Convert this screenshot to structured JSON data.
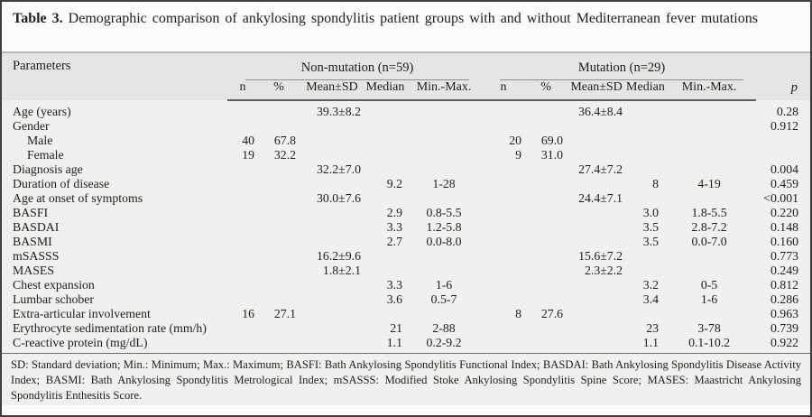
{
  "title": {
    "label": "Table 3.",
    "text": "Demographic comparison of ankylosing spondylitis patient groups with and without Mediterranean fever mutations"
  },
  "table": {
    "param_header": "Parameters",
    "groups": [
      {
        "label": "Non-mutation (n=59)"
      },
      {
        "label": "Mutation (n=29)"
      }
    ],
    "subheaders": [
      "n",
      "%",
      "Mean±SD",
      "Median",
      "Min.-Max."
    ],
    "p_header": "p",
    "rows": [
      {
        "param": "Age (years)",
        "indent": false,
        "nm": {
          "n": "",
          "pct": "",
          "mean": "39.3±8.2",
          "median": "",
          "minmax": ""
        },
        "m": {
          "n": "",
          "pct": "",
          "mean": "36.4±8.4",
          "median": "",
          "minmax": ""
        },
        "p": "0.28"
      },
      {
        "param": "Gender",
        "indent": false,
        "nm": {
          "n": "",
          "pct": "",
          "mean": "",
          "median": "",
          "minmax": ""
        },
        "m": {
          "n": "",
          "pct": "",
          "mean": "",
          "median": "",
          "minmax": ""
        },
        "p": "0.912"
      },
      {
        "param": "Male",
        "indent": true,
        "nm": {
          "n": "40",
          "pct": "67.8",
          "mean": "",
          "median": "",
          "minmax": ""
        },
        "m": {
          "n": "20",
          "pct": "69.0",
          "mean": "",
          "median": "",
          "minmax": ""
        },
        "p": ""
      },
      {
        "param": "Female",
        "indent": true,
        "nm": {
          "n": "19",
          "pct": "32.2",
          "mean": "",
          "median": "",
          "minmax": ""
        },
        "m": {
          "n": "9",
          "pct": "31.0",
          "mean": "",
          "median": "",
          "minmax": ""
        },
        "p": ""
      },
      {
        "param": "Diagnosis age",
        "indent": false,
        "nm": {
          "n": "",
          "pct": "",
          "mean": "32.2±7.0",
          "median": "",
          "minmax": ""
        },
        "m": {
          "n": "",
          "pct": "",
          "mean": "27.4±7.2",
          "median": "",
          "minmax": ""
        },
        "p": "0.004"
      },
      {
        "param": "Duration of disease",
        "indent": false,
        "nm": {
          "n": "",
          "pct": "",
          "mean": "",
          "median": "9.2",
          "minmax": "1-28"
        },
        "m": {
          "n": "",
          "pct": "",
          "mean": "",
          "median": "8",
          "minmax": "4-19"
        },
        "p": "0.459"
      },
      {
        "param": "Age at onset of symptoms",
        "indent": false,
        "nm": {
          "n": "",
          "pct": "",
          "mean": "30.0±7.6",
          "median": "",
          "minmax": ""
        },
        "m": {
          "n": "",
          "pct": "",
          "mean": "24.4±7.1",
          "median": "",
          "minmax": ""
        },
        "p": "<0.001"
      },
      {
        "param": "BASFI",
        "indent": false,
        "nm": {
          "n": "",
          "pct": "",
          "mean": "",
          "median": "2.9",
          "minmax": "0.8-5.5"
        },
        "m": {
          "n": "",
          "pct": "",
          "mean": "",
          "median": "3.0",
          "minmax": "1.8-5.5"
        },
        "p": "0.220"
      },
      {
        "param": "BASDAI",
        "indent": false,
        "nm": {
          "n": "",
          "pct": "",
          "mean": "",
          "median": "3.3",
          "minmax": "1.2-5.8"
        },
        "m": {
          "n": "",
          "pct": "",
          "mean": "",
          "median": "3.5",
          "minmax": "2.8-7.2"
        },
        "p": "0.148"
      },
      {
        "param": "BASMI",
        "indent": false,
        "nm": {
          "n": "",
          "pct": "",
          "mean": "",
          "median": "2.7",
          "minmax": "0.0-8.0"
        },
        "m": {
          "n": "",
          "pct": "",
          "mean": "",
          "median": "3.5",
          "minmax": "0.0-7.0"
        },
        "p": "0.160"
      },
      {
        "param": "mSASSS",
        "indent": false,
        "nm": {
          "n": "",
          "pct": "",
          "mean": "16.2±9.6",
          "median": "",
          "minmax": ""
        },
        "m": {
          "n": "",
          "pct": "",
          "mean": "15.6±7.2",
          "median": "",
          "minmax": ""
        },
        "p": "0.773"
      },
      {
        "param": "MASES",
        "indent": false,
        "nm": {
          "n": "",
          "pct": "",
          "mean": "1.8±2.1",
          "median": "",
          "minmax": ""
        },
        "m": {
          "n": "",
          "pct": "",
          "mean": "2.3±2.2",
          "median": "",
          "minmax": ""
        },
        "p": "0.249"
      },
      {
        "param": "Chest expansion",
        "indent": false,
        "nm": {
          "n": "",
          "pct": "",
          "mean": "",
          "median": "3.3",
          "minmax": "1-6"
        },
        "m": {
          "n": "",
          "pct": "",
          "mean": "",
          "median": "3.2",
          "minmax": "0-5"
        },
        "p": "0.812"
      },
      {
        "param": "Lumbar schober",
        "indent": false,
        "nm": {
          "n": "",
          "pct": "",
          "mean": "",
          "median": "3.6",
          "minmax": "0.5-7"
        },
        "m": {
          "n": "",
          "pct": "",
          "mean": "",
          "median": "3.4",
          "minmax": "1-6"
        },
        "p": "0.286"
      },
      {
        "param": "Extra-articular involvement",
        "indent": false,
        "nm": {
          "n": "16",
          "pct": "27.1",
          "mean": "",
          "median": "",
          "minmax": ""
        },
        "m": {
          "n": "8",
          "pct": "27.6",
          "mean": "",
          "median": "",
          "minmax": ""
        },
        "p": "0.963"
      },
      {
        "param": "Erythrocyte sedimentation rate (mm/h)",
        "indent": false,
        "nm": {
          "n": "",
          "pct": "",
          "mean": "",
          "median": "21",
          "minmax": "2-88"
        },
        "m": {
          "n": "",
          "pct": "",
          "mean": "",
          "median": "23",
          "minmax": "3-78"
        },
        "p": "0.739"
      },
      {
        "param": "C-reactive protein (mg/dL)",
        "indent": false,
        "nm": {
          "n": "",
          "pct": "",
          "mean": "",
          "median": "1.1",
          "minmax": "0.2-9.2"
        },
        "m": {
          "n": "",
          "pct": "",
          "mean": "",
          "median": "1.1",
          "minmax": "0.1-10.2"
        },
        "p": "0.922"
      }
    ]
  },
  "footnote": "SD: Standard deviation; Min.: Minimum; Max.: Maximum; BASFI: Bath Ankylosing Spondylitis Functional Index; BASDAI: Bath Ankylosing Spondylitis Disease Activity Index; BASMI: Bath Ankylosing Spondylitis Metrological Index; mSASSS: Modified Stoke Ankylosing Spondylitis Spine Score; MASES: Maastricht Ankylosing Spondylitis Enthesitis Score."
}
